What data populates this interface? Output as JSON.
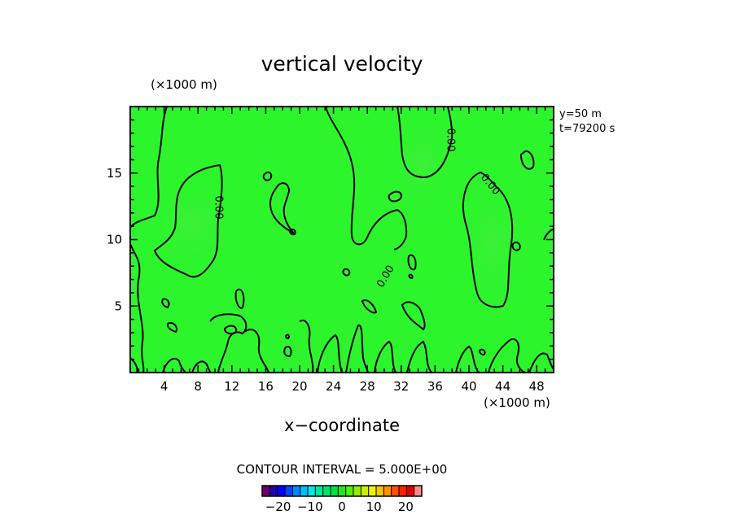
{
  "chart_data": {
    "type": "heatmap",
    "title": "vertical velocity",
    "xlabel": "x−coordinate",
    "x_unit": "(×1000 m)",
    "y_unit": "(×1000 m)",
    "xlim": [
      0,
      50
    ],
    "ylim": [
      0,
      20
    ],
    "x_ticks": [
      4,
      8,
      12,
      16,
      20,
      24,
      28,
      32,
      36,
      40,
      44,
      48
    ],
    "y_ticks": [
      5,
      10,
      15
    ],
    "annotations": [
      "y=50 m",
      "t=79200 s"
    ],
    "contour_label": "0.00",
    "contour_interval_text": "CONTOUR INTERVAL = 5.000E+00",
    "field_color": "#2cf52c",
    "colorbar": {
      "ticks": [
        -20,
        -10,
        0,
        10,
        20
      ],
      "tick_labels": [
        "−20",
        "−10",
        "0",
        "10",
        "20"
      ],
      "colors": [
        "#6b006b",
        "#2000a8",
        "#0000ff",
        "#0044ff",
        "#0088ff",
        "#00bbff",
        "#00e5e5",
        "#00e5a0",
        "#00e070",
        "#00e040",
        "#20e820",
        "#50f000",
        "#90f000",
        "#c8f000",
        "#f0f000",
        "#f0c800",
        "#ff9000",
        "#ff5000",
        "#ff2000",
        "#e00000",
        "#ff8888"
      ]
    }
  }
}
